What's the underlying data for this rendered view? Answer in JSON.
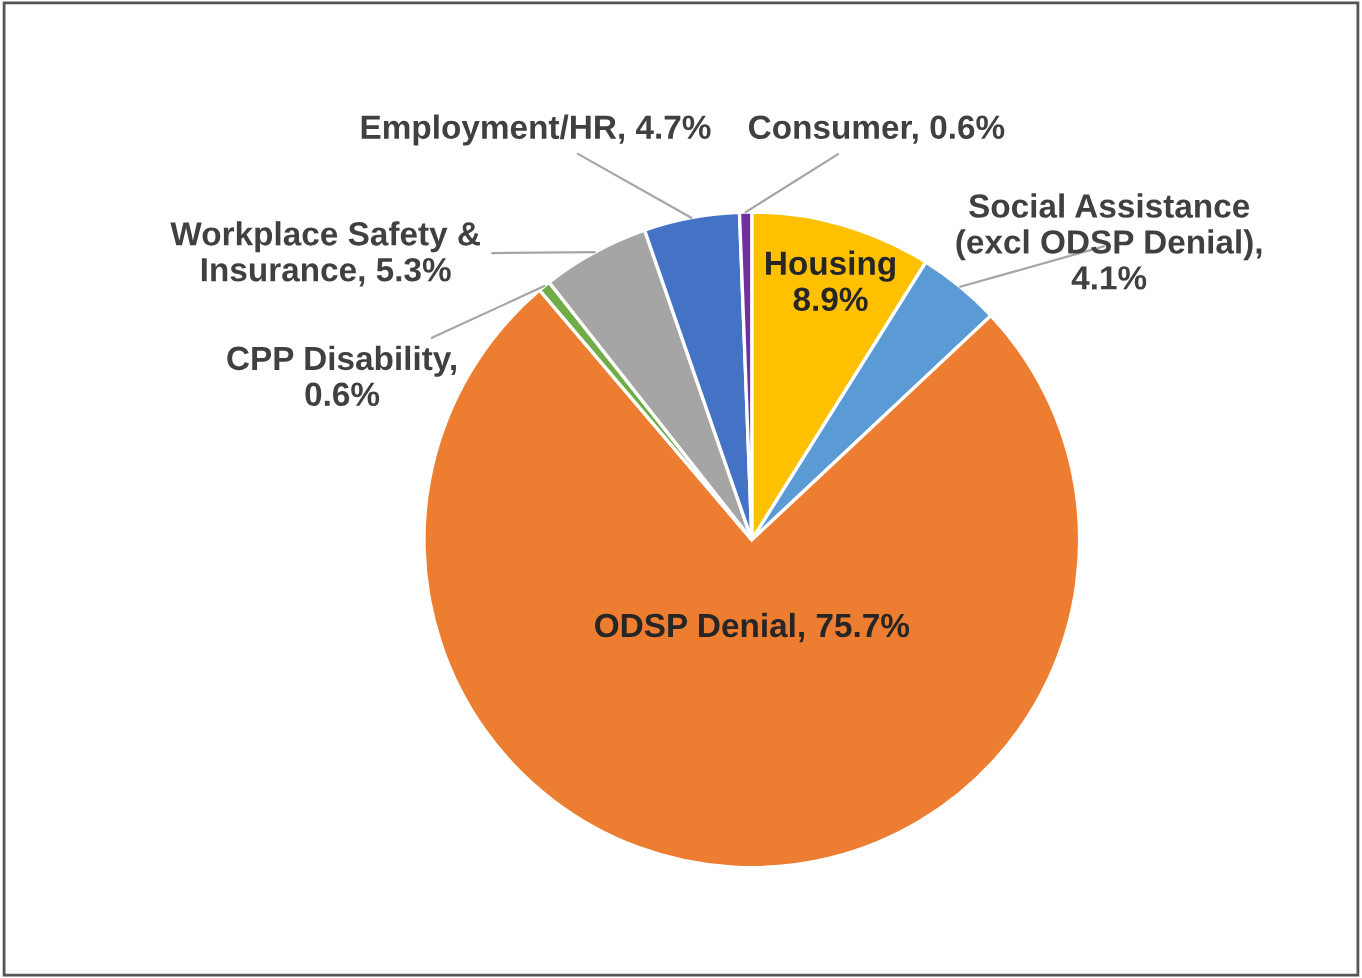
{
  "chart_data": {
    "type": "pie",
    "categories": [
      "Housing",
      "Social Assistance (excl ODSP Denial)",
      "ODSP Denial",
      "CPP Disability",
      "Workplace Safety & Insurance",
      "Employment/HR",
      "Consumer"
    ],
    "values": [
      8.9,
      4.1,
      75.7,
      0.6,
      5.3,
      4.7,
      0.6
    ],
    "colors": [
      "#ffc000",
      "#5b9bd5",
      "#ed7d31",
      "#70ad47",
      "#a5a5a5",
      "#4472c4",
      "#7030a0"
    ],
    "value_labels": [
      "8.9%",
      ",\n4.1%",
      ", 75.7%",
      ",\n0.6%",
      ", 5.3%",
      ", 4.7%",
      ", 0.6%"
    ],
    "legend": false
  }
}
